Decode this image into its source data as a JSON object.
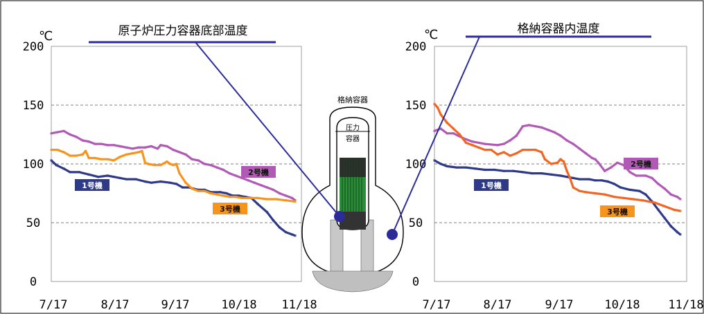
{
  "chart_data": [
    {
      "type": "line",
      "title": "原子炉圧力容器底部温度",
      "unit": "℃",
      "ylim": [
        0,
        200
      ],
      "yticks": [
        0,
        50,
        100,
        150,
        200
      ],
      "categories": [
        "7/17",
        "8/17",
        "9/17",
        "10/18",
        "11/18"
      ],
      "grid": "horizontal dashed",
      "series": [
        {
          "name": "1号機",
          "color": "#2e3a87",
          "values": [
            [
              0,
              103
            ],
            [
              0.08,
              99
            ],
            [
              0.2,
              96
            ],
            [
              0.3,
              93
            ],
            [
              0.45,
              93
            ],
            [
              0.6,
              91
            ],
            [
              0.75,
              89
            ],
            [
              0.9,
              90
            ],
            [
              1.0,
              89
            ],
            [
              1.1,
              88
            ],
            [
              1.2,
              87
            ],
            [
              1.35,
              87
            ],
            [
              1.5,
              85
            ],
            [
              1.6,
              84
            ],
            [
              1.75,
              85
            ],
            [
              1.9,
              84
            ],
            [
              2.0,
              83
            ],
            [
              2.1,
              80
            ],
            [
              2.2,
              80
            ],
            [
              2.35,
              78
            ],
            [
              2.45,
              78
            ],
            [
              2.55,
              76
            ],
            [
              2.7,
              76
            ],
            [
              2.8,
              75
            ],
            [
              2.9,
              73
            ],
            [
              3.0,
              73
            ],
            [
              3.1,
              72
            ],
            [
              3.2,
              71
            ],
            [
              3.3,
              66
            ],
            [
              3.45,
              59
            ],
            [
              3.55,
              52
            ],
            [
              3.65,
              46
            ],
            [
              3.75,
              42
            ],
            [
              3.85,
              40
            ],
            [
              3.9,
              39
            ]
          ]
        },
        {
          "name": "2号機",
          "color": "#b05ab5",
          "values": [
            [
              0,
              126
            ],
            [
              0.1,
              127
            ],
            [
              0.2,
              128
            ],
            [
              0.3,
              125
            ],
            [
              0.4,
              123
            ],
            [
              0.5,
              120
            ],
            [
              0.6,
              119
            ],
            [
              0.7,
              117
            ],
            [
              0.8,
              117
            ],
            [
              0.9,
              116
            ],
            [
              1.0,
              116
            ],
            [
              1.1,
              115
            ],
            [
              1.2,
              114
            ],
            [
              1.3,
              113
            ],
            [
              1.4,
              114
            ],
            [
              1.5,
              114
            ],
            [
              1.6,
              115
            ],
            [
              1.7,
              113
            ],
            [
              1.75,
              116
            ],
            [
              1.85,
              115
            ],
            [
              1.95,
              112
            ],
            [
              2.05,
              110
            ],
            [
              2.15,
              108
            ],
            [
              2.25,
              104
            ],
            [
              2.35,
              103
            ],
            [
              2.45,
              100
            ],
            [
              2.55,
              99
            ],
            [
              2.65,
              97
            ],
            [
              2.75,
              95
            ],
            [
              2.85,
              92
            ],
            [
              2.95,
              90
            ],
            [
              3.05,
              88
            ],
            [
              3.15,
              86
            ],
            [
              3.25,
              84
            ],
            [
              3.35,
              82
            ],
            [
              3.45,
              80
            ],
            [
              3.55,
              78
            ],
            [
              3.65,
              75
            ],
            [
              3.75,
              73
            ],
            [
              3.85,
              71
            ],
            [
              3.9,
              69
            ]
          ]
        },
        {
          "name": "3号機",
          "color": "#f7941d",
          "values": [
            [
              0,
              112
            ],
            [
              0.1,
              112
            ],
            [
              0.2,
              110
            ],
            [
              0.3,
              107
            ],
            [
              0.4,
              107
            ],
            [
              0.5,
              108
            ],
            [
              0.55,
              111
            ],
            [
              0.6,
              105
            ],
            [
              0.7,
              105
            ],
            [
              0.8,
              104
            ],
            [
              0.9,
              104
            ],
            [
              1.0,
              103
            ],
            [
              1.1,
              106
            ],
            [
              1.2,
              108
            ],
            [
              1.3,
              109
            ],
            [
              1.4,
              110
            ],
            [
              1.45,
              111
            ],
            [
              1.5,
              101
            ],
            [
              1.55,
              100
            ],
            [
              1.65,
              99
            ],
            [
              1.75,
              99
            ],
            [
              1.85,
              102
            ],
            [
              1.9,
              100
            ],
            [
              1.95,
              99
            ],
            [
              2.0,
              100
            ],
            [
              2.05,
              92
            ],
            [
              2.15,
              84
            ],
            [
              2.25,
              79
            ],
            [
              2.35,
              77
            ],
            [
              2.45,
              77
            ],
            [
              2.55,
              75
            ],
            [
              2.65,
              74
            ],
            [
              2.75,
              73
            ],
            [
              2.85,
              72
            ],
            [
              2.95,
              72
            ],
            [
              3.05,
              71
            ],
            [
              3.15,
              71
            ],
            [
              3.3,
              71
            ],
            [
              3.45,
              70
            ],
            [
              3.6,
              70
            ],
            [
              3.75,
              69
            ],
            [
              3.9,
              68
            ]
          ]
        }
      ]
    },
    {
      "type": "line",
      "title": "格納容器内温度",
      "unit": "℃",
      "ylim": [
        0,
        200
      ],
      "yticks": [
        0,
        50,
        100,
        150,
        200
      ],
      "categories": [
        "7/17",
        "8/17",
        "9/17",
        "10/18",
        "11/18"
      ],
      "grid": "horizontal dashed",
      "series": [
        {
          "name": "1号機",
          "color": "#2e3a87",
          "values": [
            [
              0,
              103
            ],
            [
              0.1,
              100
            ],
            [
              0.2,
              98
            ],
            [
              0.35,
              97
            ],
            [
              0.5,
              97
            ],
            [
              0.65,
              96
            ],
            [
              0.8,
              95
            ],
            [
              0.95,
              95
            ],
            [
              1.1,
              94
            ],
            [
              1.25,
              94
            ],
            [
              1.4,
              93
            ],
            [
              1.55,
              92
            ],
            [
              1.7,
              92
            ],
            [
              1.85,
              91
            ],
            [
              2.0,
              90
            ],
            [
              2.1,
              89
            ],
            [
              2.2,
              88
            ],
            [
              2.3,
              87
            ],
            [
              2.45,
              87
            ],
            [
              2.55,
              86
            ],
            [
              2.65,
              86
            ],
            [
              2.75,
              85
            ],
            [
              2.85,
              83
            ],
            [
              2.95,
              80
            ],
            [
              3.1,
              78
            ],
            [
              3.25,
              77
            ],
            [
              3.35,
              74
            ],
            [
              3.45,
              68
            ],
            [
              3.55,
              61
            ],
            [
              3.65,
              54
            ],
            [
              3.75,
              47
            ],
            [
              3.85,
              42
            ],
            [
              3.9,
              40
            ]
          ]
        },
        {
          "name": "2号機",
          "color": "#b05ab5",
          "values": [
            [
              0,
              128
            ],
            [
              0.1,
              130
            ],
            [
              0.2,
              126
            ],
            [
              0.3,
              126
            ],
            [
              0.45,
              122
            ],
            [
              0.6,
              119
            ],
            [
              0.8,
              117
            ],
            [
              1.0,
              116
            ],
            [
              1.1,
              117
            ],
            [
              1.2,
              120
            ],
            [
              1.3,
              124
            ],
            [
              1.4,
              132
            ],
            [
              1.5,
              133
            ],
            [
              1.6,
              132
            ],
            [
              1.7,
              131
            ],
            [
              1.8,
              129
            ],
            [
              1.9,
              127
            ],
            [
              2.0,
              124
            ],
            [
              2.1,
              120
            ],
            [
              2.2,
              117
            ],
            [
              2.3,
              113
            ],
            [
              2.4,
              109
            ],
            [
              2.5,
              105
            ],
            [
              2.55,
              104
            ],
            [
              2.6,
              101
            ],
            [
              2.7,
              94
            ],
            [
              2.8,
              97
            ],
            [
              2.9,
              101
            ],
            [
              3.0,
              99
            ],
            [
              3.1,
              93
            ],
            [
              3.2,
              90
            ],
            [
              3.35,
              90
            ],
            [
              3.45,
              88
            ],
            [
              3.55,
              83
            ],
            [
              3.65,
              79
            ],
            [
              3.75,
              74
            ],
            [
              3.85,
              72
            ],
            [
              3.9,
              70
            ]
          ]
        },
        {
          "name": "3号機",
          "color": "#f26522",
          "values": [
            [
              0,
              151
            ],
            [
              0.05,
              148
            ],
            [
              0.1,
              142
            ],
            [
              0.2,
              135
            ],
            [
              0.3,
              130
            ],
            [
              0.4,
              125
            ],
            [
              0.5,
              118
            ],
            [
              0.6,
              116
            ],
            [
              0.7,
              114
            ],
            [
              0.8,
              112
            ],
            [
              0.9,
              112
            ],
            [
              1.0,
              108
            ],
            [
              1.1,
              110
            ],
            [
              1.2,
              107
            ],
            [
              1.3,
              109
            ],
            [
              1.4,
              112
            ],
            [
              1.5,
              112
            ],
            [
              1.6,
              112
            ],
            [
              1.7,
              110
            ],
            [
              1.75,
              104
            ],
            [
              1.85,
              100
            ],
            [
              1.95,
              101
            ],
            [
              2.0,
              104
            ],
            [
              2.05,
              102
            ],
            [
              2.1,
              94
            ],
            [
              2.15,
              88
            ],
            [
              2.2,
              80
            ],
            [
              2.3,
              77
            ],
            [
              2.4,
              76
            ],
            [
              2.55,
              75
            ],
            [
              2.7,
              74
            ],
            [
              2.85,
              72
            ],
            [
              3.0,
              71
            ],
            [
              3.15,
              70
            ],
            [
              3.3,
              69
            ],
            [
              3.5,
              67
            ],
            [
              3.65,
              64
            ],
            [
              3.8,
              61
            ],
            [
              3.9,
              60
            ]
          ]
        }
      ]
    }
  ],
  "center": {
    "title": "格納容器",
    "vessel_label": [
      "圧力",
      "容器"
    ]
  }
}
